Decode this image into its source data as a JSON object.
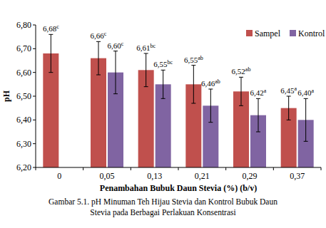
{
  "chart_data": {
    "type": "bar",
    "x_label": "Penambahan Bubuk Daun Stevia (%) (b/v)",
    "y_label": "pH",
    "caption": [
      "Gambar 5.1. pH Minuman Teh Hijau Stevia dan Kontrol Bubuk Daun",
      "Stevia pada Berbagai Perlakuan Konsentrasi"
    ],
    "categories": [
      "0",
      "0,05",
      "0,13",
      "0,21",
      "0,29",
      "0,37"
    ],
    "series": [
      {
        "name": "Sampel",
        "color": "#c0504d",
        "values": [
          6.68,
          6.66,
          6.61,
          6.55,
          6.52,
          6.45
        ],
        "value_labels": [
          "6,68",
          "6,66",
          "6,61",
          "6,55",
          "6,52",
          "6,45"
        ],
        "letters": [
          "c",
          "c",
          "bc",
          "ab",
          "ab",
          "a"
        ],
        "errors": [
          0.08,
          0.07,
          0.07,
          0.08,
          0.06,
          0.05
        ]
      },
      {
        "name": "Kontrol",
        "color": "#8064a2",
        "values": [
          null,
          6.6,
          6.55,
          6.46,
          6.42,
          6.4
        ],
        "value_labels": [
          null,
          "6,60",
          "6,55",
          "6,46",
          "6,42",
          "6,40"
        ],
        "letters": [
          null,
          "c",
          "bc",
          "ab",
          "a",
          "a"
        ],
        "errors": [
          null,
          0.09,
          0.06,
          0.07,
          0.07,
          0.09
        ]
      }
    ],
    "ylim": [
      6.2,
      6.8
    ],
    "yticks": [
      {
        "value": 6.2,
        "label": "6,20"
      },
      {
        "value": 6.3,
        "label": "6,30"
      },
      {
        "value": 6.4,
        "label": "6,40"
      },
      {
        "value": 6.5,
        "label": "6,50"
      },
      {
        "value": 6.6,
        "label": "6,60"
      },
      {
        "value": 6.7,
        "label": "6,70"
      },
      {
        "value": 6.8,
        "label": "6,80"
      }
    ],
    "grid": false,
    "legend": "top-right",
    "data_labels": true
  }
}
